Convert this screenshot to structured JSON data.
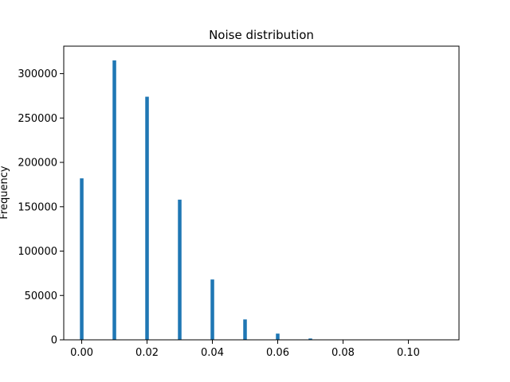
{
  "chart_data": {
    "type": "bar",
    "title": "Noise distribution",
    "xlabel": "",
    "ylabel": "Frequency",
    "xlim": [
      -0.0055,
      0.1155
    ],
    "ylim": [
      0,
      331000
    ],
    "x_ticks": [
      0.0,
      0.02,
      0.04,
      0.06,
      0.08,
      0.1
    ],
    "x_tick_labels": [
      "0.00",
      "0.02",
      "0.04",
      "0.06",
      "0.08",
      "0.10"
    ],
    "y_ticks": [
      0,
      50000,
      100000,
      150000,
      200000,
      250000,
      300000
    ],
    "y_tick_labels": [
      "0",
      "50000",
      "100000",
      "150000",
      "200000",
      "250000",
      "300000"
    ],
    "bin_width": 0.0011,
    "x": [
      0.0,
      0.01,
      0.02,
      0.03,
      0.04,
      0.05,
      0.06,
      0.07,
      0.08,
      0.09,
      0.1,
      0.11
    ],
    "values": [
      182000,
      315000,
      274000,
      158000,
      68000,
      23000,
      7000,
      1500,
      300,
      50,
      0,
      0
    ],
    "grid": false,
    "legend": "none",
    "bar_color": "#1f77b4"
  }
}
